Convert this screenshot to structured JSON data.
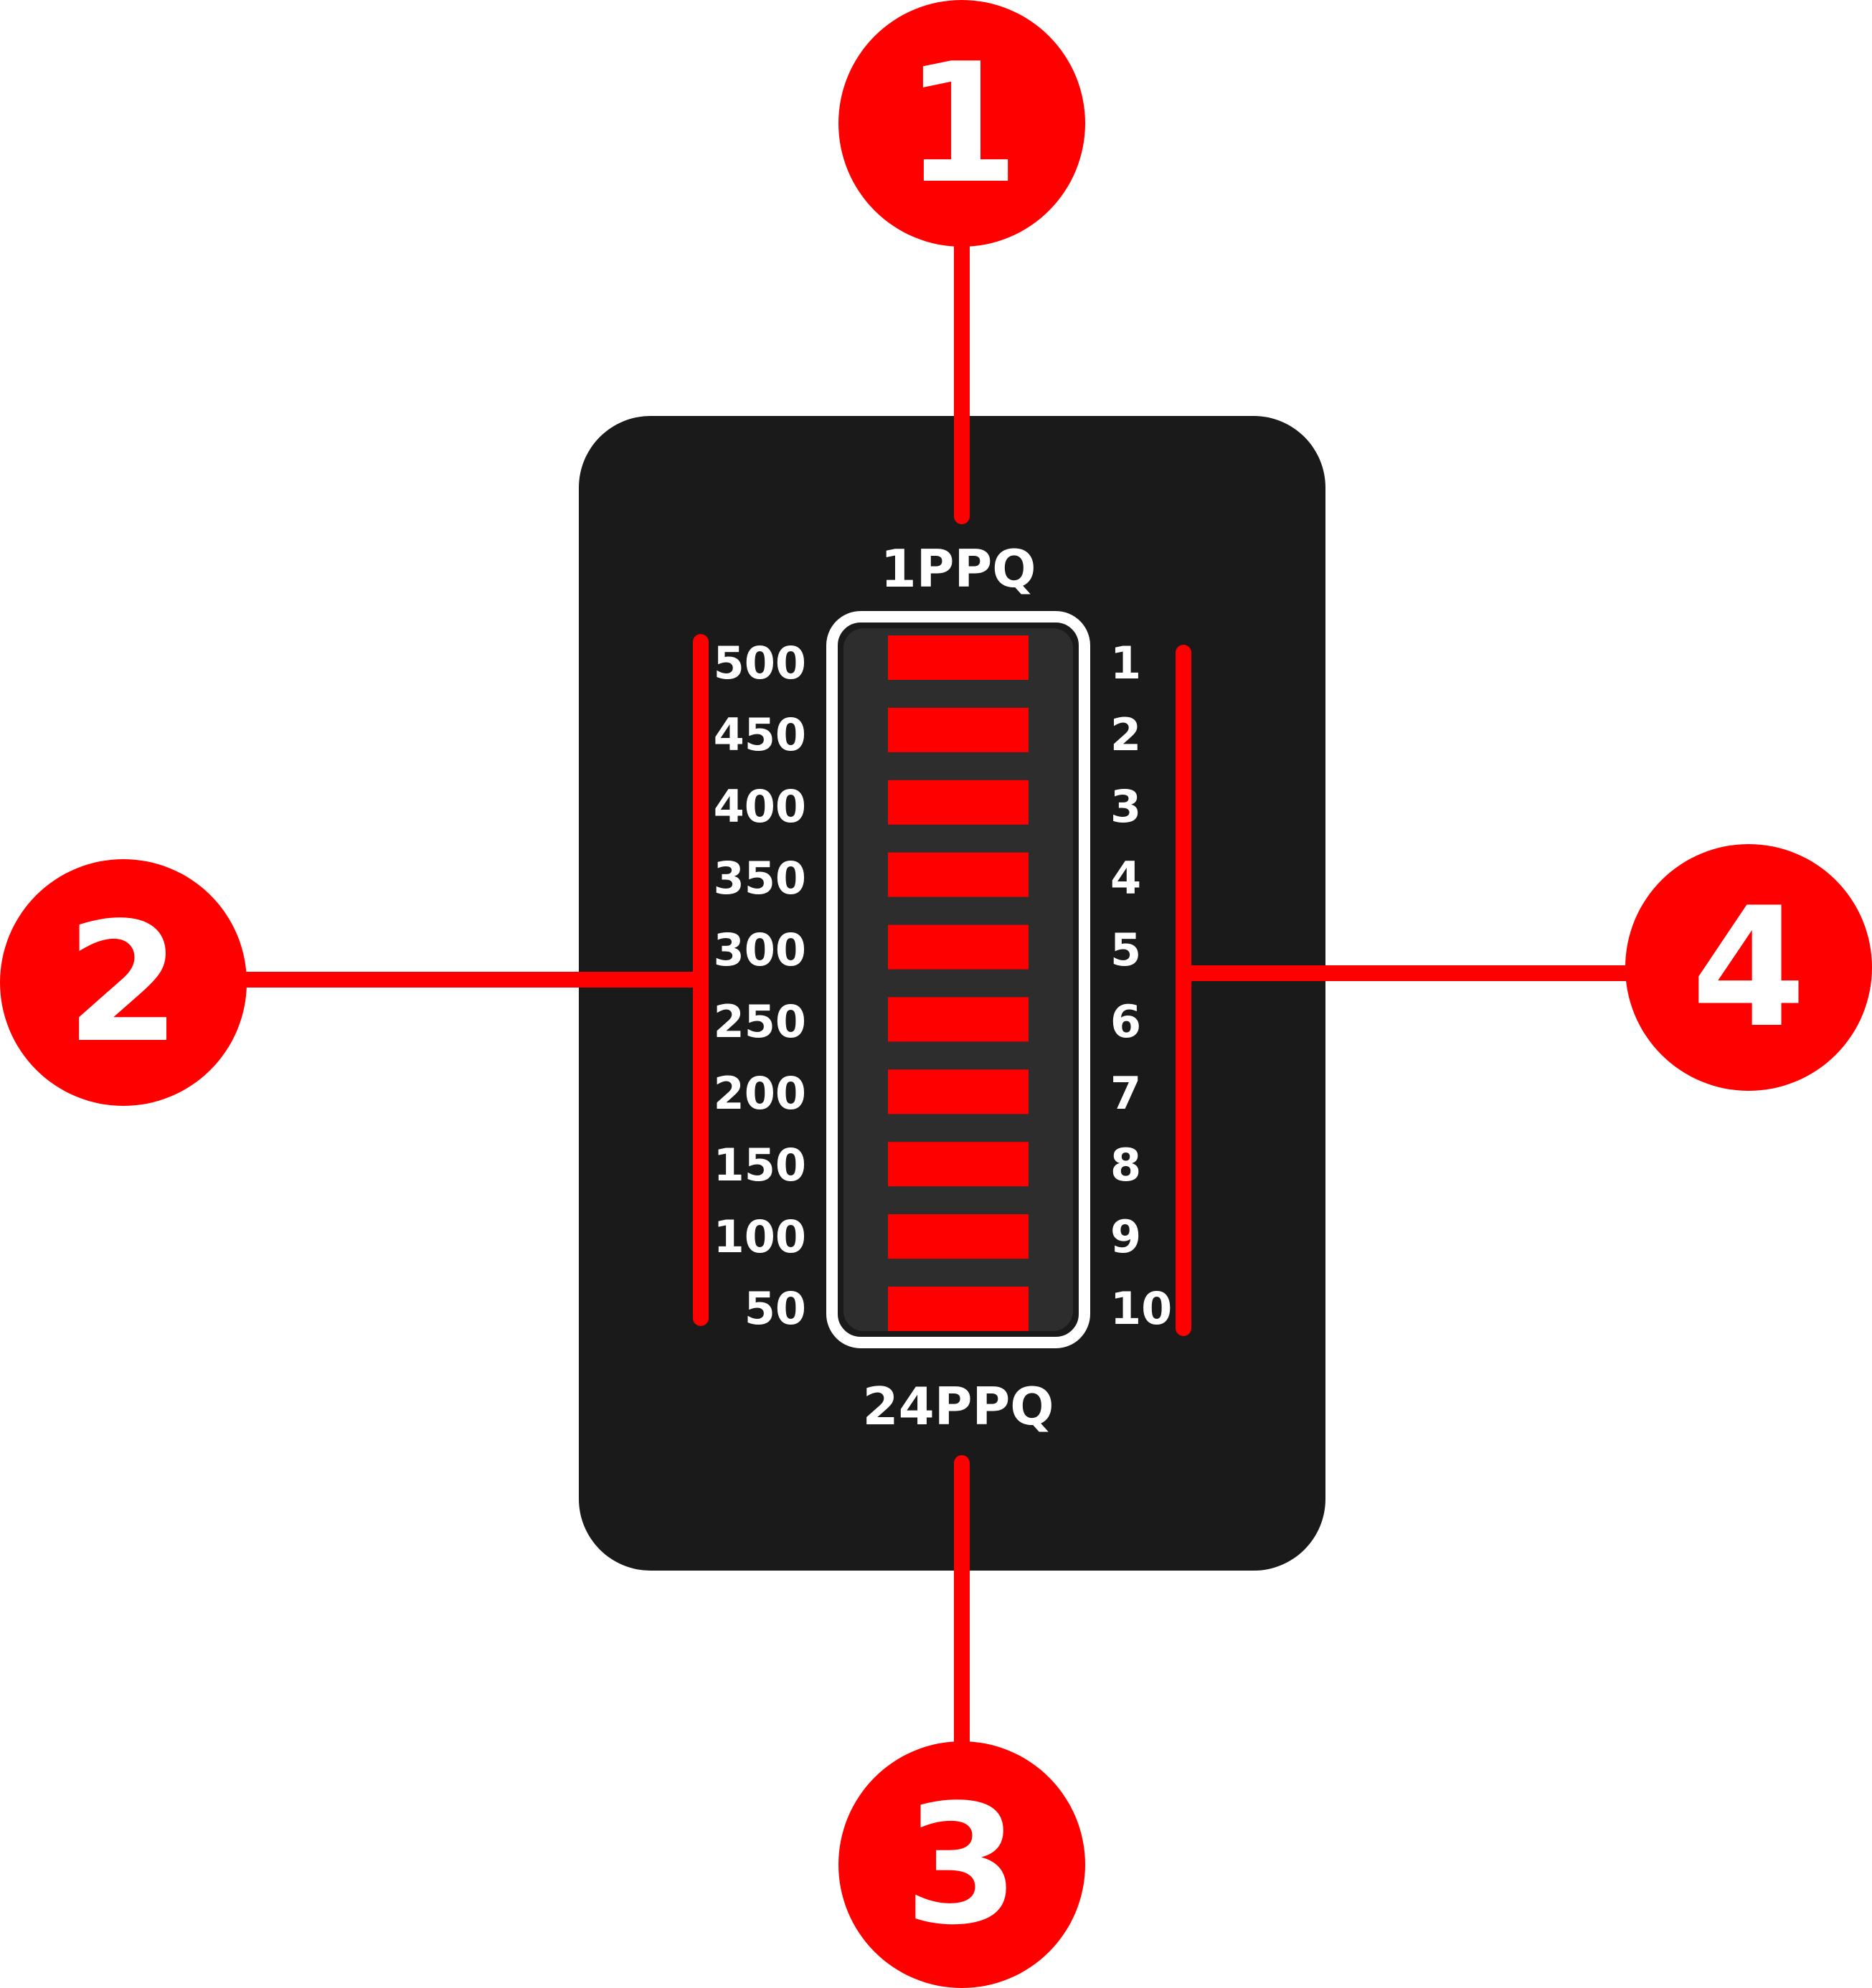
{
  "colors": {
    "callout": "#ff0000",
    "panel": "#1a1a1a",
    "window": "#2d2d2d",
    "segment": "#ff0000",
    "frame": "#ffffff",
    "text": "#ffffff"
  },
  "callouts": [
    {
      "number": "1"
    },
    {
      "number": "2"
    },
    {
      "number": "3"
    },
    {
      "number": "4"
    }
  ],
  "panel": {
    "top_label": "1PPQ",
    "bottom_label": "24PPQ"
  },
  "left_scale": [
    "500",
    "450",
    "400",
    "350",
    "300",
    "250",
    "200",
    "150",
    "100",
    "50"
  ],
  "right_scale": [
    "1",
    "2",
    "3",
    "4",
    "5",
    "6",
    "7",
    "8",
    "9",
    "10"
  ],
  "led_segments": 10
}
